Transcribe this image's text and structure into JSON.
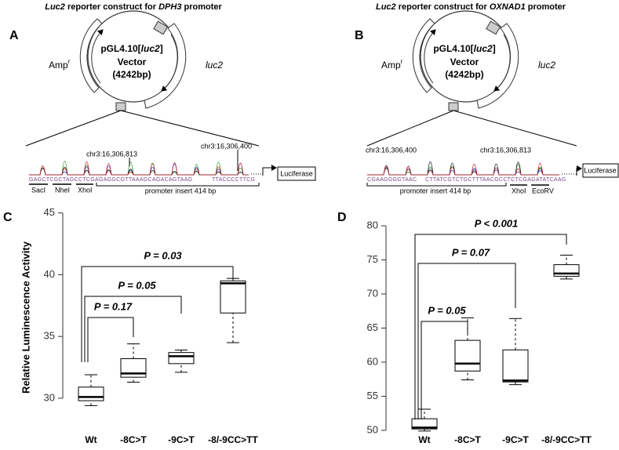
{
  "panels": [
    {
      "letter": "A",
      "title": [
        "Luc2",
        " reporter construct for ",
        "DPH3",
        " promoter"
      ],
      "amp": "Amp",
      "amp_sup": "r",
      "luc2": "luc2",
      "vector": [
        "pGL4.10[",
        "luc2",
        "]"
      ],
      "vector_line2": "Vector",
      "size": "(4242bp)",
      "coords": [
        "chr3:16,306,813",
        "chr3:16,306,400"
      ],
      "sequence": [
        "GAGCTCGCTAGCCTCGAGAGGCGTTAAAGCAGACAGTAAG",
        "TTACCCCTTCG"
      ],
      "sites": [
        "SacI",
        "NheI",
        "XhoI"
      ],
      "insert": "promoter insert 414 bp",
      "luciferase": "Luciferase"
    },
    {
      "letter": "B",
      "title": [
        "Luc2",
        " reporter construct for ",
        "OXNAD1",
        " promoter"
      ],
      "amp": "Amp",
      "amp_sup": "r",
      "luc2": "luc2",
      "vector": [
        "pGL4.10[",
        "luc2",
        "]"
      ],
      "vector_line2": "Vector",
      "size": "(4242bp)",
      "coords": [
        "chr3:16,306,400",
        "chr3:16,306,813"
      ],
      "sequence": [
        "CGAAGGGGTAAC",
        "CTTATCGTCTGCTTTAACGCCTCTCGAGATATCAAG"
      ],
      "sites": [
        "XhoI",
        "EcoRV"
      ],
      "insert": "promoter insert 414 bp",
      "luciferase": "Luciferase"
    }
  ],
  "chart_data": [
    {
      "type": "box",
      "letter": "C",
      "y_label": "Relative Luminescence Activity",
      "categories": [
        "Wt",
        "-8C>T",
        "-9C>T",
        "-8/-9CC>TT"
      ],
      "boxes": [
        {
          "min": 29.4,
          "q1": 29.8,
          "median": 30.1,
          "q3": 30.9,
          "max": 31.9
        },
        {
          "min": 31.3,
          "q1": 31.7,
          "median": 32.0,
          "q3": 33.2,
          "max": 34.4
        },
        {
          "min": 32.1,
          "q1": 32.8,
          "median": 33.4,
          "q3": 33.7,
          "max": 33.9
        },
        {
          "min": 34.5,
          "q1": 36.9,
          "median": 39.3,
          "q3": 39.5,
          "max": 39.7
        }
      ],
      "ylim": [
        28.6,
        46.5
      ],
      "yticks": [
        30,
        35,
        40,
        45
      ],
      "annotations": [
        "P = 0.17",
        "P = 0.05",
        "P = 0.03"
      ]
    },
    {
      "type": "box",
      "letter": "D",
      "categories": [
        "Wt",
        "-8C>T",
        "-9C>T",
        "-8/-9CC>TT"
      ],
      "boxes": [
        {
          "min": 49.9,
          "q1": 50.2,
          "median": 50.4,
          "q3": 51.7,
          "max": 53.1
        },
        {
          "min": 57.4,
          "q1": 58.7,
          "median": 59.8,
          "q3": 63.2,
          "max": 66.5
        },
        {
          "min": 56.7,
          "q1": 57.1,
          "median": 57.3,
          "q3": 61.8,
          "max": 66.4
        },
        {
          "min": 72.2,
          "q1": 72.6,
          "median": 73.0,
          "q3": 74.3,
          "max": 75.7
        }
      ],
      "ylim": [
        49.3,
        81.5
      ],
      "yticks": [
        50,
        55,
        60,
        65,
        70,
        75,
        80
      ],
      "annotations": [
        "P = 0.05",
        "P = 0.07",
        "P < 0.001"
      ]
    }
  ]
}
